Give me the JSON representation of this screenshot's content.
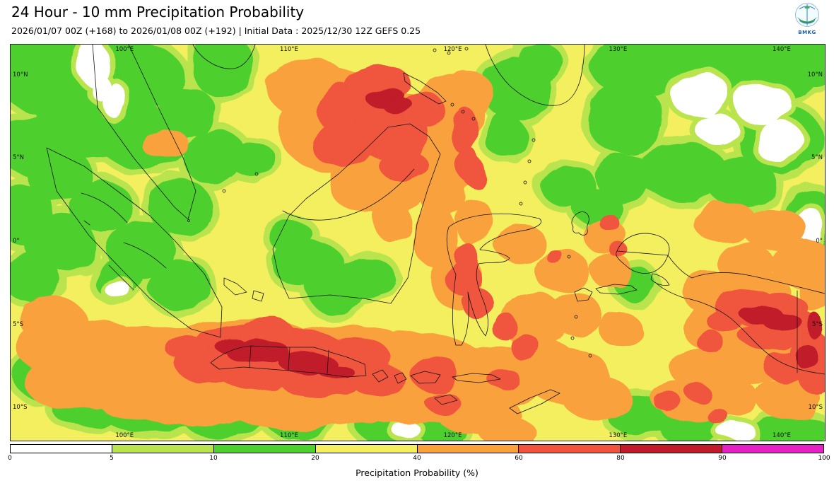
{
  "header": {
    "title": "24 Hour - 10 mm Precipitation Probability",
    "subtitle": "2026/01/07 00Z (+168) to 2026/01/08 00Z (+192) | Initial Data : 2025/12/30 12Z GEFS 0.25",
    "logo_label": "BMKG"
  },
  "map": {
    "lat_labels": [
      "10°N",
      "5°N",
      "0°",
      "5°S",
      "10°S"
    ],
    "lon_labels": [
      "100°E",
      "110°E",
      "120°E",
      "130°E",
      "140°E"
    ]
  },
  "colorbar": {
    "caption": "Precipitation Probability (%)",
    "ticks": [
      "0",
      "5",
      "10",
      "20",
      "40",
      "60",
      "80",
      "90",
      "100"
    ],
    "segments": [
      {
        "range": "0-5",
        "color": "#ffffff"
      },
      {
        "range": "5-10",
        "color": "#b9e44d"
      },
      {
        "range": "10-20",
        "color": "#4ed02f"
      },
      {
        "range": "20-40",
        "color": "#f3ef5e"
      },
      {
        "range": "40-60",
        "color": "#f9a23c"
      },
      {
        "range": "60-80",
        "color": "#f0543c"
      },
      {
        "range": "80-90",
        "color": "#c01a2b"
      },
      {
        "range": "90-100",
        "color": "#e520c5"
      }
    ]
  }
}
